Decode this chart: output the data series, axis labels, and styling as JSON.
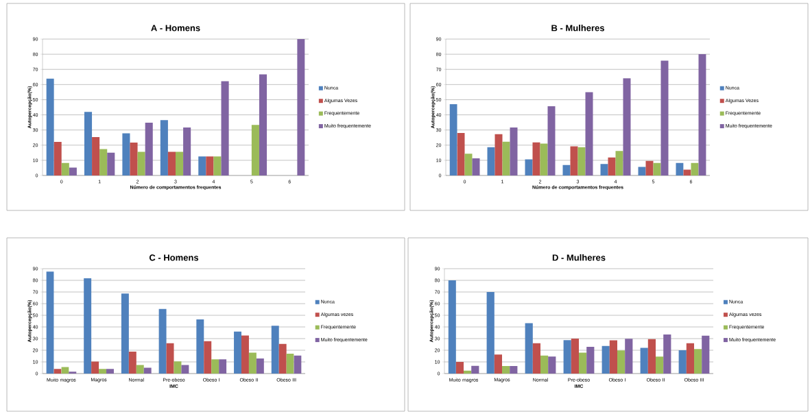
{
  "chart_data": [
    {
      "type": "bar",
      "title": "A - Homens",
      "xlabel": "Número de comportamentos frequentes",
      "ylabel": "Autopercepção(%)",
      "categories": [
        "0",
        "1",
        "2",
        "3",
        "4",
        "5",
        "6"
      ],
      "ylim": [
        0,
        90
      ],
      "yticks": [
        0,
        10,
        20,
        30,
        40,
        50,
        60,
        70,
        80,
        90
      ],
      "grid": "y",
      "legend": "right",
      "series": [
        {
          "name": "Nunca",
          "color": "#4f81bd",
          "values": [
            64,
            42,
            27.8,
            36.5,
            12.5,
            0,
            0
          ]
        },
        {
          "name": "Algumas Vezes",
          "color": "#c0504d",
          "values": [
            22.2,
            25.3,
            21.7,
            15.6,
            12.5,
            0,
            0
          ]
        },
        {
          "name": "Frequentemente",
          "color": "#9bbb59",
          "values": [
            8.3,
            17.4,
            15.6,
            15.6,
            12.5,
            33.3,
            0
          ]
        },
        {
          "name": "Muito frequentemente",
          "color": "#8064a2",
          "values": [
            5.2,
            15,
            34.8,
            31.6,
            62.2,
            66.7,
            90
          ]
        }
      ]
    },
    {
      "type": "bar",
      "title": "B - Mulheres",
      "xlabel": "Número de comportamentos frequentes",
      "ylabel": "Autopercepção(%)",
      "categories": [
        "0",
        "1",
        "2",
        "3",
        "4",
        "5",
        "6"
      ],
      "ylim": [
        0,
        90
      ],
      "yticks": [
        0,
        10,
        20,
        30,
        40,
        50,
        60,
        70,
        80,
        90
      ],
      "grid": "y",
      "legend": "right",
      "series": [
        {
          "name": "Nunca",
          "color": "#4f81bd",
          "values": [
            47,
            18.6,
            10.6,
            6.9,
            7.6,
            5.7,
            8.2
          ]
        },
        {
          "name": "Algumas Vezes",
          "color": "#c0504d",
          "values": [
            28,
            27.2,
            21.8,
            19.2,
            11.9,
            9.6,
            3.8
          ]
        },
        {
          "name": "Frequentemente",
          "color": "#9bbb59",
          "values": [
            14.4,
            22.3,
            21,
            18.6,
            16.2,
            8.2,
            8.2
          ]
        },
        {
          "name": "Muito frequentemente",
          "color": "#8064a2",
          "values": [
            11.3,
            31.6,
            45.7,
            55,
            64.1,
            75.8,
            80
          ]
        }
      ]
    },
    {
      "type": "bar",
      "title": "C - Homens",
      "xlabel": "IMC",
      "ylabel": "Autopercepção(%)",
      "categories": [
        "Muito magros",
        "Magros",
        "Normal",
        "Pre-obeso",
        "Obeso I",
        "Obeso II",
        "Obeso III"
      ],
      "ylim": [
        0,
        90
      ],
      "yticks": [
        0,
        10,
        20,
        30,
        40,
        50,
        60,
        70,
        80,
        90
      ],
      "grid": "y",
      "legend": "right",
      "series": [
        {
          "name": "Nunca",
          "color": "#4f81bd",
          "values": [
            87.5,
            81.7,
            68.6,
            55.4,
            46.5,
            36,
            41
          ]
        },
        {
          "name": "Algumas vezes",
          "color": "#c0504d",
          "values": [
            4,
            10.3,
            18.8,
            26,
            27.8,
            32.6,
            25.4
          ]
        },
        {
          "name": "Frequentemente",
          "color": "#9bbb59",
          "values": [
            5.6,
            4,
            7.4,
            10.4,
            12.2,
            18,
            17
          ]
        },
        {
          "name": "Muito frequentemente",
          "color": "#8064a2",
          "values": [
            1.6,
            4,
            5,
            7.4,
            12.2,
            13,
            15.4
          ]
        }
      ]
    },
    {
      "type": "bar",
      "title": "D - Mulheres",
      "xlabel": "IMC",
      "ylabel": "Autopercepção(%)",
      "categories": [
        "Muito magros",
        "Magros",
        "Normal",
        "Pre-obeso",
        "Obeso I",
        "Obeso II",
        "Obeso III"
      ],
      "ylim": [
        0,
        90
      ],
      "yticks": [
        0,
        10,
        20,
        30,
        40,
        50,
        60,
        70,
        80,
        90
      ],
      "grid": "y",
      "legend": "right",
      "series": [
        {
          "name": "Nunca",
          "color": "#4f81bd",
          "values": [
            80,
            70,
            43.3,
            28.6,
            23.6,
            22,
            20
          ]
        },
        {
          "name": "Algumas vezes",
          "color": "#c0504d",
          "values": [
            10,
            16.3,
            26,
            30,
            28.5,
            29.6,
            26
          ]
        },
        {
          "name": "Frequentemente",
          "color": "#9bbb59",
          "values": [
            2.5,
            6.5,
            15.4,
            17.9,
            19.8,
            14.6,
            21
          ]
        },
        {
          "name": "Muito frequentemente",
          "color": "#8064a2",
          "values": [
            6.6,
            6.5,
            14.6,
            22.9,
            29.8,
            33.5,
            32.5
          ]
        }
      ]
    }
  ]
}
